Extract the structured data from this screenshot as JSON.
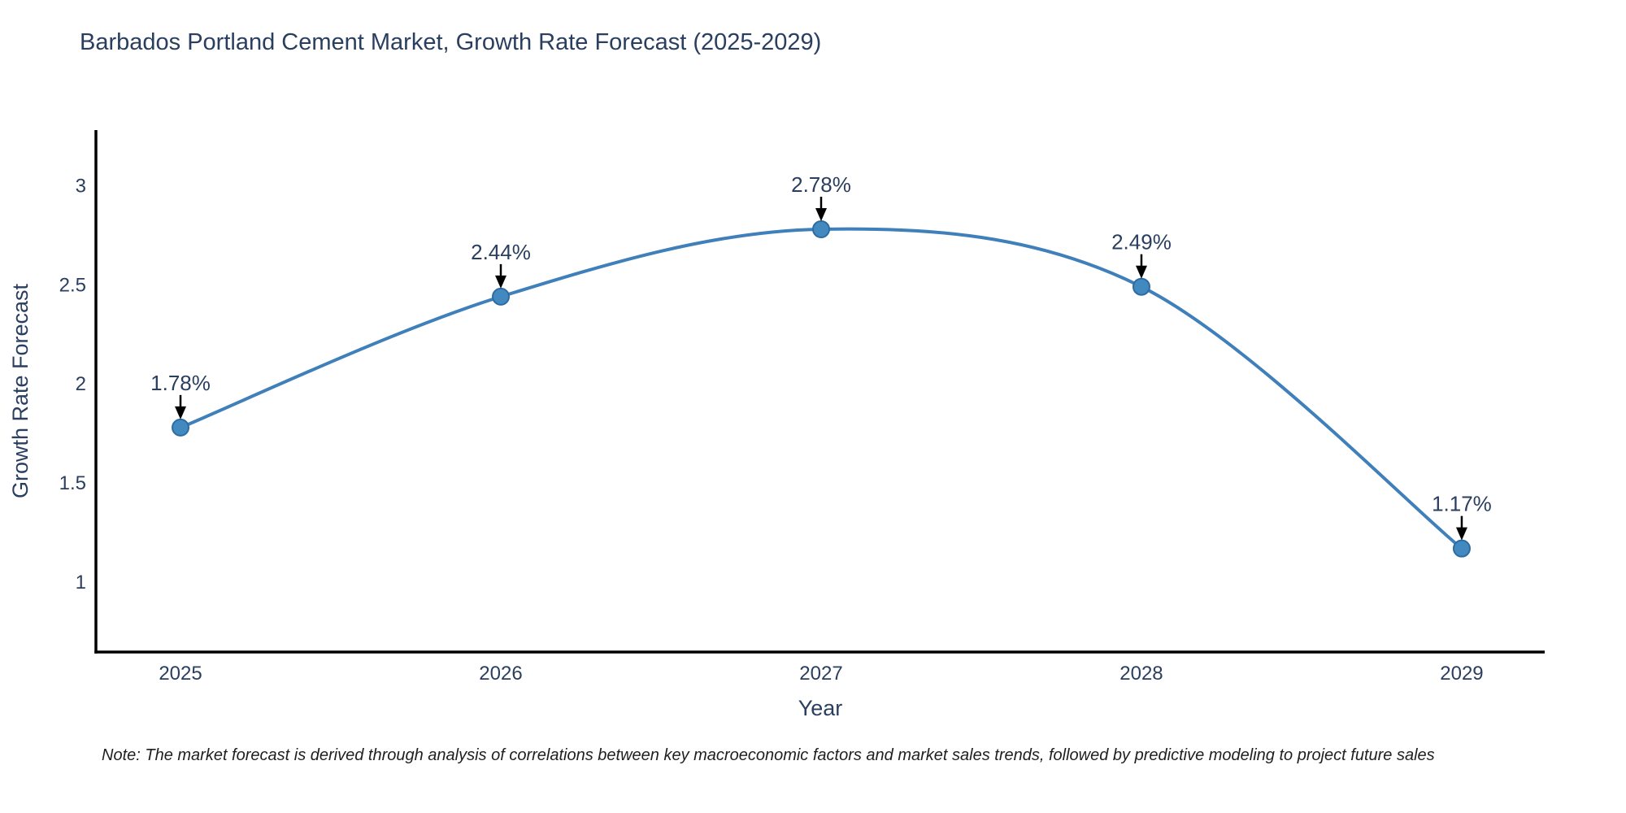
{
  "title": "Barbados Portland Cement Market, Growth Rate Forecast (2025-2029)",
  "note": "Note: The market forecast is derived through analysis of correlations between key macroeconomic factors and market sales trends, followed by predictive modeling to project future sales",
  "chart_data": {
    "type": "line",
    "title": "Barbados Portland Cement Market, Growth Rate Forecast (2025-2029)",
    "xlabel": "Year",
    "ylabel": "Growth Rate Forecast",
    "x": [
      2025,
      2026,
      2027,
      2028,
      2029
    ],
    "values": [
      1.78,
      2.44,
      2.78,
      2.49,
      1.17
    ],
    "point_labels": [
      "1.78%",
      "2.44%",
      "2.78%",
      "2.49%",
      "1.17%"
    ],
    "xticks": [
      "2025",
      "2026",
      "2027",
      "2028",
      "2029"
    ],
    "xtick_values": [
      2025,
      2026,
      2027,
      2028,
      2029
    ],
    "yticks": [
      "1",
      "1.5",
      "2",
      "2.5",
      "3"
    ],
    "ytick_values": [
      1,
      1.5,
      2,
      2.5,
      3
    ],
    "xlim": [
      2024.736,
      2029.259
    ],
    "ylim": [
      0.648,
      3.28
    ],
    "line_shape": "spline",
    "grid": false,
    "legend": "none",
    "colors": {
      "line": "#3f7fba",
      "marker_fill": "#4289c0",
      "marker_edge": "#2f6ba3",
      "axis_line": "#000000",
      "text": "#2a3f5f",
      "annotation_arrow": "#000000"
    }
  }
}
